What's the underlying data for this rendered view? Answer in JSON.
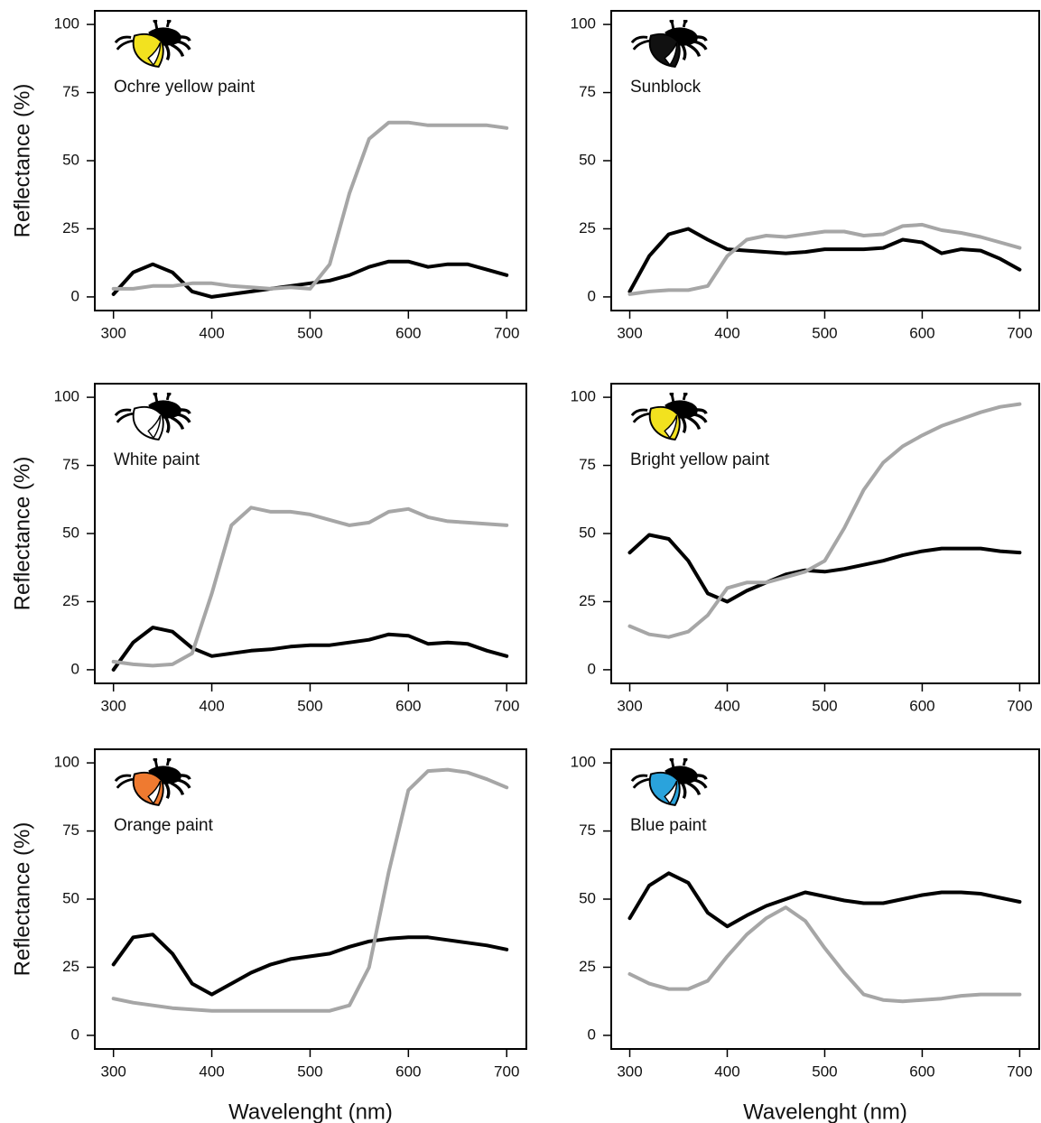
{
  "chart_data": [
    {
      "type": "line",
      "title": "Ochre yellow paint",
      "ylabel": "Reflectance (%)",
      "x": [
        300,
        320,
        340,
        360,
        380,
        400,
        420,
        440,
        460,
        480,
        500,
        520,
        540,
        560,
        580,
        600,
        620,
        640,
        660,
        680,
        700
      ],
      "series": [
        {
          "color": "#000000",
          "values": [
            1,
            9,
            12,
            9,
            2,
            0,
            1,
            2,
            3,
            4,
            5,
            6,
            8,
            11,
            13,
            13,
            11,
            12,
            12,
            10,
            8
          ]
        },
        {
          "color": "#a6a6a6",
          "values": [
            3,
            3,
            4,
            4,
            5,
            5,
            4,
            3.5,
            3,
            3.5,
            3,
            12,
            38,
            58,
            64,
            64,
            63,
            63,
            63,
            63,
            62
          ]
        }
      ],
      "xlim": [
        281,
        720
      ],
      "ylim": [
        -5,
        105
      ],
      "xticks": [
        300,
        400,
        500,
        600,
        700
      ],
      "yticks": [
        0,
        25,
        50,
        75,
        100
      ]
    },
    {
      "type": "line",
      "title": "Sunblock",
      "x": [
        300,
        320,
        340,
        360,
        380,
        400,
        420,
        440,
        460,
        480,
        500,
        520,
        540,
        560,
        580,
        600,
        620,
        640,
        660,
        680,
        700
      ],
      "series": [
        {
          "color": "#000000",
          "values": [
            2,
            15,
            23,
            25,
            21,
            17.5,
            17,
            16.5,
            16,
            16.5,
            17.5,
            17.5,
            17.5,
            18,
            21,
            20,
            16,
            17.5,
            17,
            14,
            10
          ]
        },
        {
          "color": "#a6a6a6",
          "values": [
            1,
            2,
            2.5,
            2.5,
            4,
            15,
            21,
            22.5,
            22,
            23,
            24,
            24,
            22.5,
            23,
            26,
            26.5,
            24.5,
            23.5,
            22,
            20,
            18
          ]
        }
      ],
      "xlim": [
        281,
        720
      ],
      "ylim": [
        -5,
        105
      ],
      "xticks": [
        300,
        400,
        500,
        600,
        700
      ],
      "yticks": [
        0,
        25,
        50,
        75,
        100
      ]
    },
    {
      "type": "line",
      "title": "White paint",
      "ylabel": "Reflectance (%)",
      "x": [
        300,
        320,
        340,
        360,
        380,
        400,
        420,
        440,
        460,
        480,
        500,
        520,
        540,
        560,
        580,
        600,
        620,
        640,
        660,
        680,
        700
      ],
      "series": [
        {
          "color": "#000000",
          "values": [
            0,
            10,
            15.5,
            14,
            8,
            5,
            6,
            7,
            7.5,
            8.5,
            9,
            9,
            10,
            11,
            13,
            12.5,
            9.5,
            10,
            9.5,
            7,
            5
          ]
        },
        {
          "color": "#a6a6a6",
          "values": [
            3,
            2,
            1.5,
            2,
            6,
            28,
            53,
            59.5,
            58,
            58,
            57,
            55,
            53,
            54,
            58,
            59,
            56,
            54.5,
            54,
            53.5,
            53
          ]
        }
      ],
      "xlim": [
        281,
        720
      ],
      "ylim": [
        -5,
        105
      ],
      "xticks": [
        300,
        400,
        500,
        600,
        700
      ],
      "yticks": [
        0,
        25,
        50,
        75,
        100
      ]
    },
    {
      "type": "line",
      "title": "Bright yellow paint",
      "x": [
        300,
        320,
        340,
        360,
        380,
        400,
        420,
        440,
        460,
        480,
        500,
        520,
        540,
        560,
        580,
        600,
        620,
        640,
        660,
        680,
        700
      ],
      "series": [
        {
          "color": "#000000",
          "values": [
            43,
            49.5,
            48,
            40,
            28,
            25,
            29,
            32,
            35,
            36.5,
            36,
            37,
            38.5,
            40,
            42,
            43.5,
            44.5,
            44.5,
            44.5,
            43.5,
            43
          ]
        },
        {
          "color": "#a6a6a6",
          "values": [
            16,
            13,
            12,
            14,
            20,
            30,
            32,
            32,
            34,
            36,
            40,
            52,
            66,
            76,
            82,
            86,
            89.5,
            92,
            94.5,
            96.5,
            97.5
          ]
        }
      ],
      "xlim": [
        281,
        720
      ],
      "ylim": [
        -5,
        105
      ],
      "xticks": [
        300,
        400,
        500,
        600,
        700
      ],
      "yticks": [
        0,
        25,
        50,
        75,
        100
      ]
    },
    {
      "type": "line",
      "title": "Orange paint",
      "ylabel": "Reflectance (%)",
      "xlabel": "Wavelenght (nm)",
      "x": [
        300,
        320,
        340,
        360,
        380,
        400,
        420,
        440,
        460,
        480,
        500,
        520,
        540,
        560,
        580,
        600,
        620,
        640,
        660,
        680,
        700
      ],
      "series": [
        {
          "color": "#000000",
          "values": [
            26,
            36,
            37,
            30,
            19,
            15,
            19,
            23,
            26,
            28,
            29,
            30,
            32.5,
            34.5,
            35.5,
            36,
            36,
            35,
            34,
            33,
            31.5
          ]
        },
        {
          "color": "#a6a6a6",
          "values": [
            13.5,
            12,
            11,
            10,
            9.5,
            9,
            9,
            9,
            9,
            9,
            9,
            9,
            11,
            25,
            60,
            90,
            97,
            97.5,
            96.5,
            94,
            91
          ]
        }
      ],
      "xlim": [
        281,
        720
      ],
      "ylim": [
        -5,
        105
      ],
      "xticks": [
        300,
        400,
        500,
        600,
        700
      ],
      "yticks": [
        0,
        25,
        50,
        75,
        100
      ]
    },
    {
      "type": "line",
      "title": "Blue paint",
      "xlabel": "Wavelenght (nm)",
      "x": [
        300,
        320,
        340,
        360,
        380,
        400,
        420,
        440,
        460,
        480,
        500,
        520,
        540,
        560,
        580,
        600,
        620,
        640,
        660,
        680,
        700
      ],
      "series": [
        {
          "color": "#000000",
          "values": [
            43,
            55,
            59.5,
            56,
            45,
            40,
            44,
            47.5,
            50,
            52.5,
            51,
            49.5,
            48.5,
            48.5,
            50,
            51.5,
            52.5,
            52.5,
            52,
            50.5,
            49
          ]
        },
        {
          "color": "#a6a6a6",
          "values": [
            22.5,
            19,
            17,
            17,
            20,
            29,
            37,
            43,
            47,
            42,
            32,
            23,
            15,
            13,
            12.5,
            13,
            13.5,
            14.5,
            15,
            15,
            15
          ]
        }
      ],
      "xlim": [
        281,
        720
      ],
      "ylim": [
        -5,
        105
      ],
      "xticks": [
        300,
        400,
        500,
        600,
        700
      ],
      "yticks": [
        0,
        25,
        50,
        75,
        100
      ]
    }
  ]
}
